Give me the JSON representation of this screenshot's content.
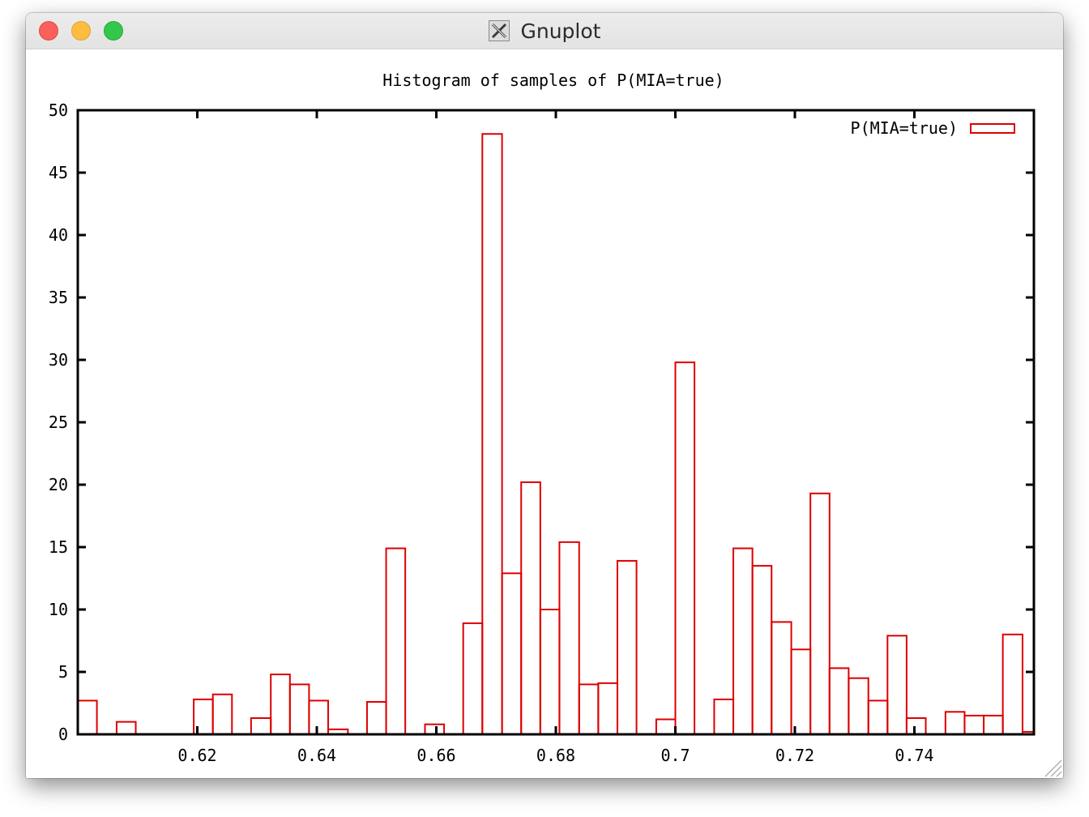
{
  "window": {
    "title": "Gnuplot",
    "icon": "x11-icon"
  },
  "chart_data": {
    "type": "bar",
    "title": "Histogram of samples of P(MIA=true)",
    "xlabel": "",
    "ylabel": "",
    "legend": "P(MIA=true)",
    "legend_position": "top-right",
    "xlim": [
      0.6,
      0.76
    ],
    "ylim": [
      0,
      50
    ],
    "xticks": [
      "0.62",
      "0.64",
      "0.66",
      "0.68",
      "0.7",
      "0.72",
      "0.74"
    ],
    "xtick_values": [
      0.62,
      0.64,
      0.66,
      0.68,
      0.7,
      0.72,
      0.74
    ],
    "yticks": [
      "0",
      "5",
      "10",
      "15",
      "20",
      "25",
      "30",
      "35",
      "40",
      "45",
      "50"
    ],
    "ytick_values": [
      0,
      5,
      10,
      15,
      20,
      25,
      30,
      35,
      40,
      45,
      50
    ],
    "color": "#dd0000",
    "bars": [
      {
        "x0": 0.6,
        "x1": 0.6032,
        "y": 2.7
      },
      {
        "x0": 0.6065,
        "x1": 0.6097,
        "y": 1.0
      },
      {
        "x0": 0.6194,
        "x1": 0.6226,
        "y": 2.8
      },
      {
        "x0": 0.6226,
        "x1": 0.6258,
        "y": 3.2
      },
      {
        "x0": 0.629,
        "x1": 0.6323,
        "y": 1.3
      },
      {
        "x0": 0.6323,
        "x1": 0.6355,
        "y": 4.8
      },
      {
        "x0": 0.6355,
        "x1": 0.6387,
        "y": 4.0
      },
      {
        "x0": 0.6387,
        "x1": 0.6419,
        "y": 2.7
      },
      {
        "x0": 0.6419,
        "x1": 0.6452,
        "y": 0.4
      },
      {
        "x0": 0.6484,
        "x1": 0.6516,
        "y": 2.6
      },
      {
        "x0": 0.6516,
        "x1": 0.6548,
        "y": 14.9
      },
      {
        "x0": 0.6581,
        "x1": 0.6613,
        "y": 0.8
      },
      {
        "x0": 0.6645,
        "x1": 0.6677,
        "y": 8.9
      },
      {
        "x0": 0.6677,
        "x1": 0.671,
        "y": 48.1
      },
      {
        "x0": 0.671,
        "x1": 0.6742,
        "y": 12.9
      },
      {
        "x0": 0.6742,
        "x1": 0.6774,
        "y": 20.2
      },
      {
        "x0": 0.6774,
        "x1": 0.6806,
        "y": 10.0
      },
      {
        "x0": 0.6806,
        "x1": 0.6839,
        "y": 15.4
      },
      {
        "x0": 0.6839,
        "x1": 0.6871,
        "y": 4.0
      },
      {
        "x0": 0.6871,
        "x1": 0.6903,
        "y": 4.1
      },
      {
        "x0": 0.6903,
        "x1": 0.6935,
        "y": 13.9
      },
      {
        "x0": 0.6968,
        "x1": 0.7,
        "y": 1.2
      },
      {
        "x0": 0.7,
        "x1": 0.7032,
        "y": 29.8
      },
      {
        "x0": 0.7065,
        "x1": 0.7097,
        "y": 2.8
      },
      {
        "x0": 0.7097,
        "x1": 0.7129,
        "y": 14.9
      },
      {
        "x0": 0.7129,
        "x1": 0.7161,
        "y": 13.5
      },
      {
        "x0": 0.7161,
        "x1": 0.7194,
        "y": 9.0
      },
      {
        "x0": 0.7194,
        "x1": 0.7226,
        "y": 6.8
      },
      {
        "x0": 0.7226,
        "x1": 0.7258,
        "y": 19.3
      },
      {
        "x0": 0.7258,
        "x1": 0.729,
        "y": 5.3
      },
      {
        "x0": 0.729,
        "x1": 0.7323,
        "y": 4.5
      },
      {
        "x0": 0.7323,
        "x1": 0.7355,
        "y": 2.7
      },
      {
        "x0": 0.7355,
        "x1": 0.7387,
        "y": 7.9
      },
      {
        "x0": 0.7387,
        "x1": 0.7419,
        "y": 1.3
      },
      {
        "x0": 0.7452,
        "x1": 0.7484,
        "y": 1.8
      },
      {
        "x0": 0.7484,
        "x1": 0.7516,
        "y": 1.5
      },
      {
        "x0": 0.7516,
        "x1": 0.7548,
        "y": 1.5
      },
      {
        "x0": 0.7548,
        "x1": 0.7581,
        "y": 8.0
      },
      {
        "x0": 0.7581,
        "x1": 0.7613,
        "y": 0.2
      }
    ]
  }
}
